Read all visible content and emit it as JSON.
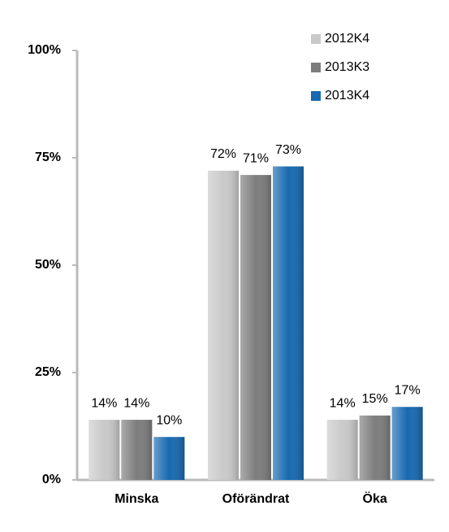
{
  "chart_data": {
    "type": "bar",
    "categories": [
      "Minska",
      "Oförändrat",
      "Öka"
    ],
    "series": [
      {
        "name": "2012K4",
        "color": "#c9c9c9",
        "values": [
          14,
          72,
          14
        ],
        "value_labels": [
          "14%",
          "72%",
          "14%"
        ]
      },
      {
        "name": "2013K3",
        "color": "#7d7d7d",
        "values": [
          14,
          71,
          15
        ],
        "value_labels": [
          "14%",
          "71%",
          "15%"
        ]
      },
      {
        "name": "2013K4",
        "color": "#1769b0",
        "values": [
          10,
          73,
          17
        ],
        "value_labels": [
          "10%",
          "73%",
          "17%"
        ]
      }
    ],
    "ylim": [
      0,
      100
    ],
    "yticks": [
      {
        "value": 0,
        "label": "0%"
      },
      {
        "value": 25,
        "label": "25%"
      },
      {
        "value": 50,
        "label": "50%"
      },
      {
        "value": 75,
        "label": "75%"
      },
      {
        "value": 100,
        "label": "100%"
      }
    ],
    "grid": false,
    "legend": "top-right"
  }
}
